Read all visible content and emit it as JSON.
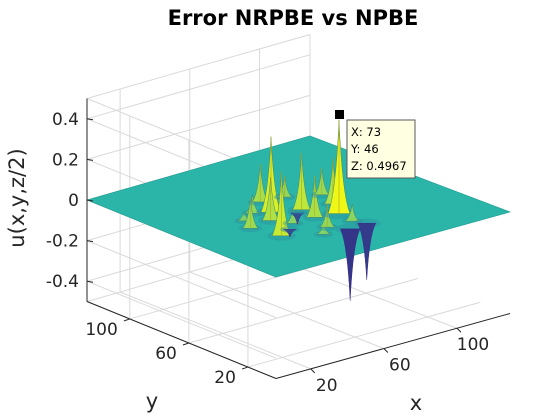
{
  "chart_data": {
    "type": "surface",
    "title": "Error NRPBE vs NPBE",
    "xlabel": "x",
    "ylabel": "y",
    "zlabel": "u(x,y,z/2)",
    "xticks": [
      20,
      60,
      100
    ],
    "yticks": [
      20,
      60,
      100
    ],
    "zticks": [
      -0.4,
      -0.2,
      0,
      0.2,
      0.4
    ],
    "zticklabels": [
      "-0.4",
      "-0.2",
      "0",
      "0.2",
      "0.4"
    ],
    "xlim": [
      1,
      129
    ],
    "ylim": [
      1,
      129
    ],
    "zlim": [
      -0.5,
      0.5
    ],
    "grid": true,
    "base_level": 0,
    "peaks": [
      {
        "x": 73,
        "y": 46,
        "z": 0.4967
      },
      {
        "x": 52,
        "y": 66,
        "z": 0.4
      },
      {
        "x": 36,
        "y": 40,
        "z": 0.34
      },
      {
        "x": 64,
        "y": 60,
        "z": 0.3
      },
      {
        "x": 79,
        "y": 57,
        "z": 0.24
      },
      {
        "x": 45,
        "y": 58,
        "z": 0.23
      },
      {
        "x": 57,
        "y": 79,
        "z": 0.2
      },
      {
        "x": 62,
        "y": 49,
        "z": 0.22
      },
      {
        "x": 83,
        "y": 69,
        "z": 0.14
      },
      {
        "x": 32,
        "y": 56,
        "z": 0.16
      },
      {
        "x": 69,
        "y": 77,
        "z": 0.11
      },
      {
        "x": 45,
        "y": 70,
        "z": 0.1
      },
      {
        "x": 58,
        "y": 36,
        "z": 0.12
      },
      {
        "x": 50,
        "y": 49,
        "z": 0.08
      },
      {
        "x": 71,
        "y": 35,
        "z": 0.09
      },
      {
        "x": 36,
        "y": 65,
        "z": 0.05
      },
      {
        "x": 51,
        "y": 30,
        "z": 0.06
      },
      {
        "x": 64,
        "y": 28,
        "z": -0.38
      },
      {
        "x": 74,
        "y": 29,
        "z": -0.3
      },
      {
        "x": 60,
        "y": 58,
        "z": -0.06
      },
      {
        "x": 44,
        "y": 44,
        "z": -0.04
      }
    ],
    "datatip": {
      "x_label": "X: 73",
      "y_label": "Y: 46",
      "z_label": "Z: 0.4967"
    },
    "colors": {
      "low": "#352a87",
      "base": "#2ab5a8",
      "high": "#f9fb0e",
      "datatip_bg": "#ffffe1"
    }
  }
}
